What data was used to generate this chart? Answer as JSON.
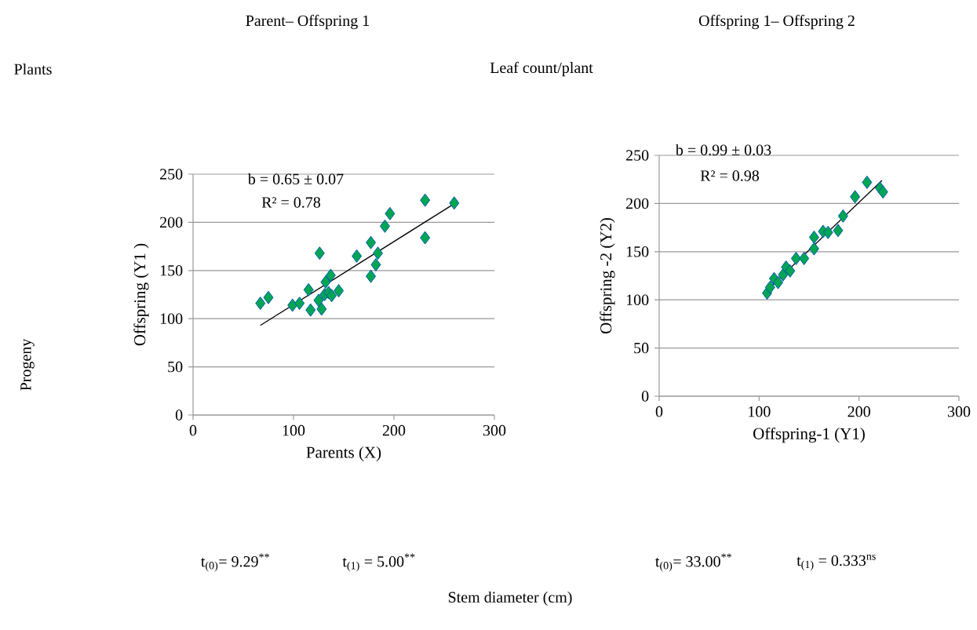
{
  "chart_data": [
    {
      "type": "scatter",
      "title": "Parent– Offspring 1",
      "xlabel": "Parents (X)",
      "ylabel": "Offspring (Y1 )",
      "annotations": [
        "Plants",
        "Progeny",
        "b =  0.65 ± 0.07",
        "R² = 0.78",
        "t$_{(0)}$= 9.29$^{**}$",
        "t$_{(1)}$ = 5.00$^{**}$",
        "Stem diameter (cm)"
      ],
      "series": [
        {
          "marker": "diamond",
          "color": "#00a651",
          "x": [
            67,
            75,
            99,
            106,
            115,
            117,
            125,
            128,
            131,
            135,
            138,
            137,
            132,
            145,
            126,
            163,
            177,
            177,
            184,
            182,
            191,
            196,
            231,
            231,
            260
          ],
          "values": [
            116,
            122,
            114,
            116,
            130,
            109,
            119,
            110,
            125,
            127,
            124,
            145,
            138,
            129,
            168,
            165,
            179,
            144,
            168,
            156,
            196,
            209,
            223,
            184,
            220
          ]
        },
        {
          "type": "line",
          "color": "#000000",
          "x": [
            67,
            261
          ],
          "values": [
            93,
            220
          ]
        }
      ],
      "xlim": [
        0,
        300
      ],
      "xticks": [
        0,
        100,
        200,
        300
      ],
      "ylim": [
        0,
        250
      ],
      "yticks": [
        0,
        50,
        100,
        150,
        200,
        250
      ],
      "grid": "y"
    },
    {
      "type": "scatter",
      "title": "Offspring 1– Offspring 2",
      "xlabel": "Offspring-1 (Y1)",
      "ylabel": "Offspring -2 (Y2)",
      "annotations": [
        "Leaf count/plant",
        "b =   0.99 ± 0.03",
        "R² = 0.98",
        "t$_{(0)}$= 33.00$^{**}$",
        "t$_{(1)}$ = 0.333$^{ns}$"
      ],
      "series": [
        {
          "marker": "diamond",
          "color": "#00a651",
          "x": [
            108,
            111,
            115,
            119,
            124,
            127,
            131,
            137,
            145,
            155,
            155,
            164,
            169,
            179,
            184,
            196,
            208,
            221,
            224
          ],
          "values": [
            107,
            113,
            122,
            118,
            126,
            134,
            130,
            143,
            143,
            165,
            153,
            171,
            170,
            172,
            187,
            207,
            222,
            216,
            212
          ]
        },
        {
          "type": "line",
          "color": "#000000",
          "x": [
            108,
            223
          ],
          "values": [
            110,
            224
          ]
        }
      ],
      "xlim": [
        0,
        300
      ],
      "xticks": [
        0,
        100,
        200,
        300
      ],
      "ylim": [
        0,
        250
      ],
      "yticks": [
        0,
        50,
        100,
        150,
        200,
        250
      ],
      "grid": "y"
    }
  ]
}
